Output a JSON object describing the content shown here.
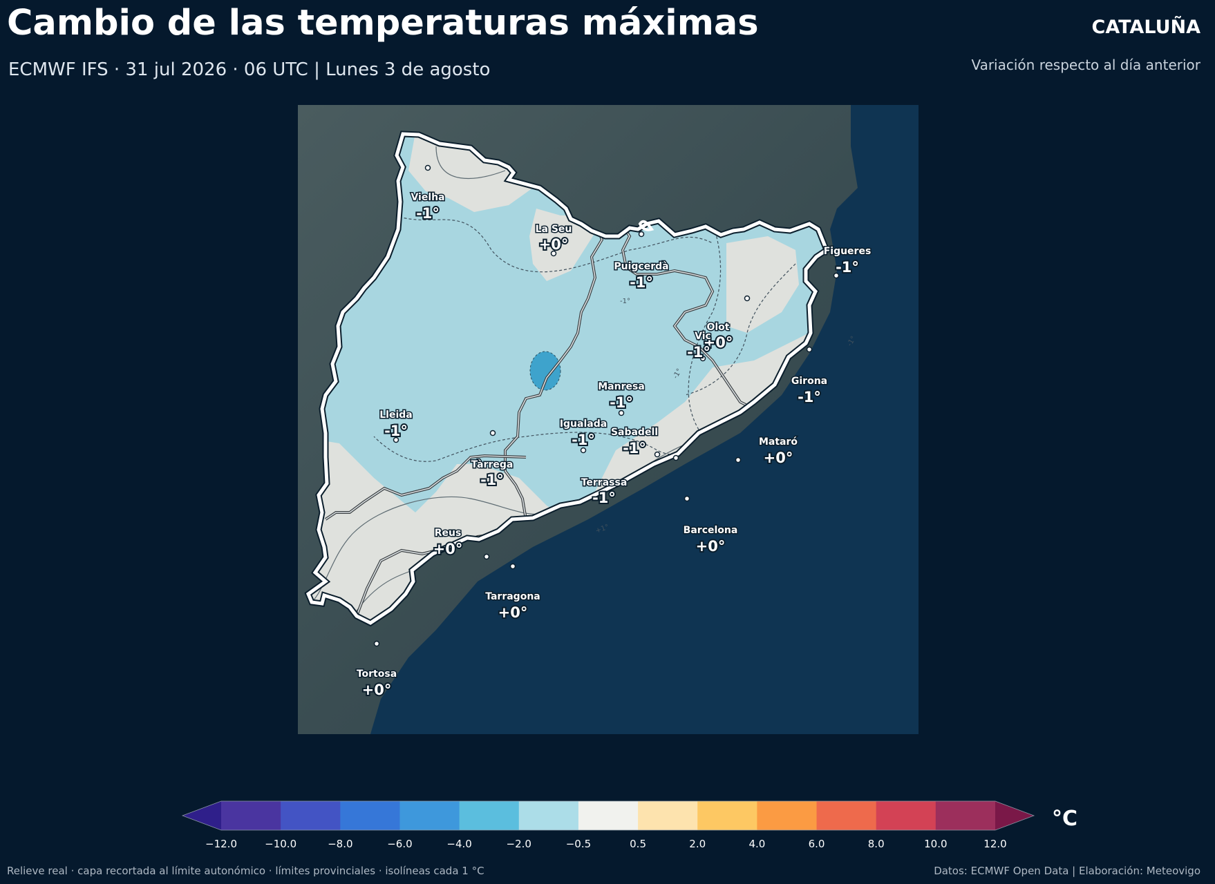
{
  "header": {
    "title": "Cambio de las temperaturas máximas",
    "subtitle": "ECMWF IFS · 31 jul 2026 · 06 UTC  |  Lunes 3 de agosto",
    "region": "CATALUÑA",
    "variation": "Variación respecto al día anterior"
  },
  "map": {
    "land_color": "#3e5258",
    "sea_color": "#0f3452",
    "boundary_color": "#ffffff",
    "cities": [
      {
        "name": "Vielha",
        "value": "-1°"
      },
      {
        "name": "La Seu",
        "value": "+0°"
      },
      {
        "name": "Puigcerdà",
        "value": "-1°"
      },
      {
        "name": "Figueres",
        "value": "-1°"
      },
      {
        "name": "Olot",
        "value": "+0°"
      },
      {
        "name": "Vic",
        "value": "-1°"
      },
      {
        "name": "Girona",
        "value": "-1°"
      },
      {
        "name": "Manresa",
        "value": "-1°"
      },
      {
        "name": "Lleida",
        "value": "-1°"
      },
      {
        "name": "Igualada",
        "value": "-1°"
      },
      {
        "name": "Sabadell",
        "value": "-1°"
      },
      {
        "name": "Mataró",
        "value": "+0°"
      },
      {
        "name": "Tàrrega",
        "value": "-1°"
      },
      {
        "name": "Terrassa",
        "value": "-1°"
      },
      {
        "name": "Reus",
        "value": "+0°"
      },
      {
        "name": "Barcelona",
        "value": "+0°"
      },
      {
        "name": "Tarragona",
        "value": "+0°"
      },
      {
        "name": "Tortosa",
        "value": "+0°"
      }
    ],
    "isoline_labels": [
      "-1°",
      "-1°",
      "-1°",
      "+1°"
    ]
  },
  "colorbar": {
    "ticks": [
      "−12.0",
      "−10.0",
      "−8.0",
      "−6.0",
      "−4.0",
      "−2.0",
      "−0.5",
      "0.5",
      "2.0",
      "4.0",
      "6.0",
      "8.0",
      "10.0",
      "12.0"
    ],
    "colors": [
      "#4a35a0",
      "#4354c4",
      "#3677d8",
      "#3e98dc",
      "#5bbede",
      "#acdde8",
      "#f1f2ee",
      "#fde3ae",
      "#fdc863",
      "#fb9b43",
      "#ee6a4c",
      "#d34255",
      "#9c2f5c"
    ],
    "under_color": "#2f1f8a",
    "over_color": "#7a1848",
    "unit": "°C"
  },
  "footer": {
    "left": "Relieve real · capa recortada al límite autonómico · límites provinciales · isolíneas cada 1 °C",
    "right": "Datos: ECMWF Open Data | Elaboración: Meteovigo"
  }
}
